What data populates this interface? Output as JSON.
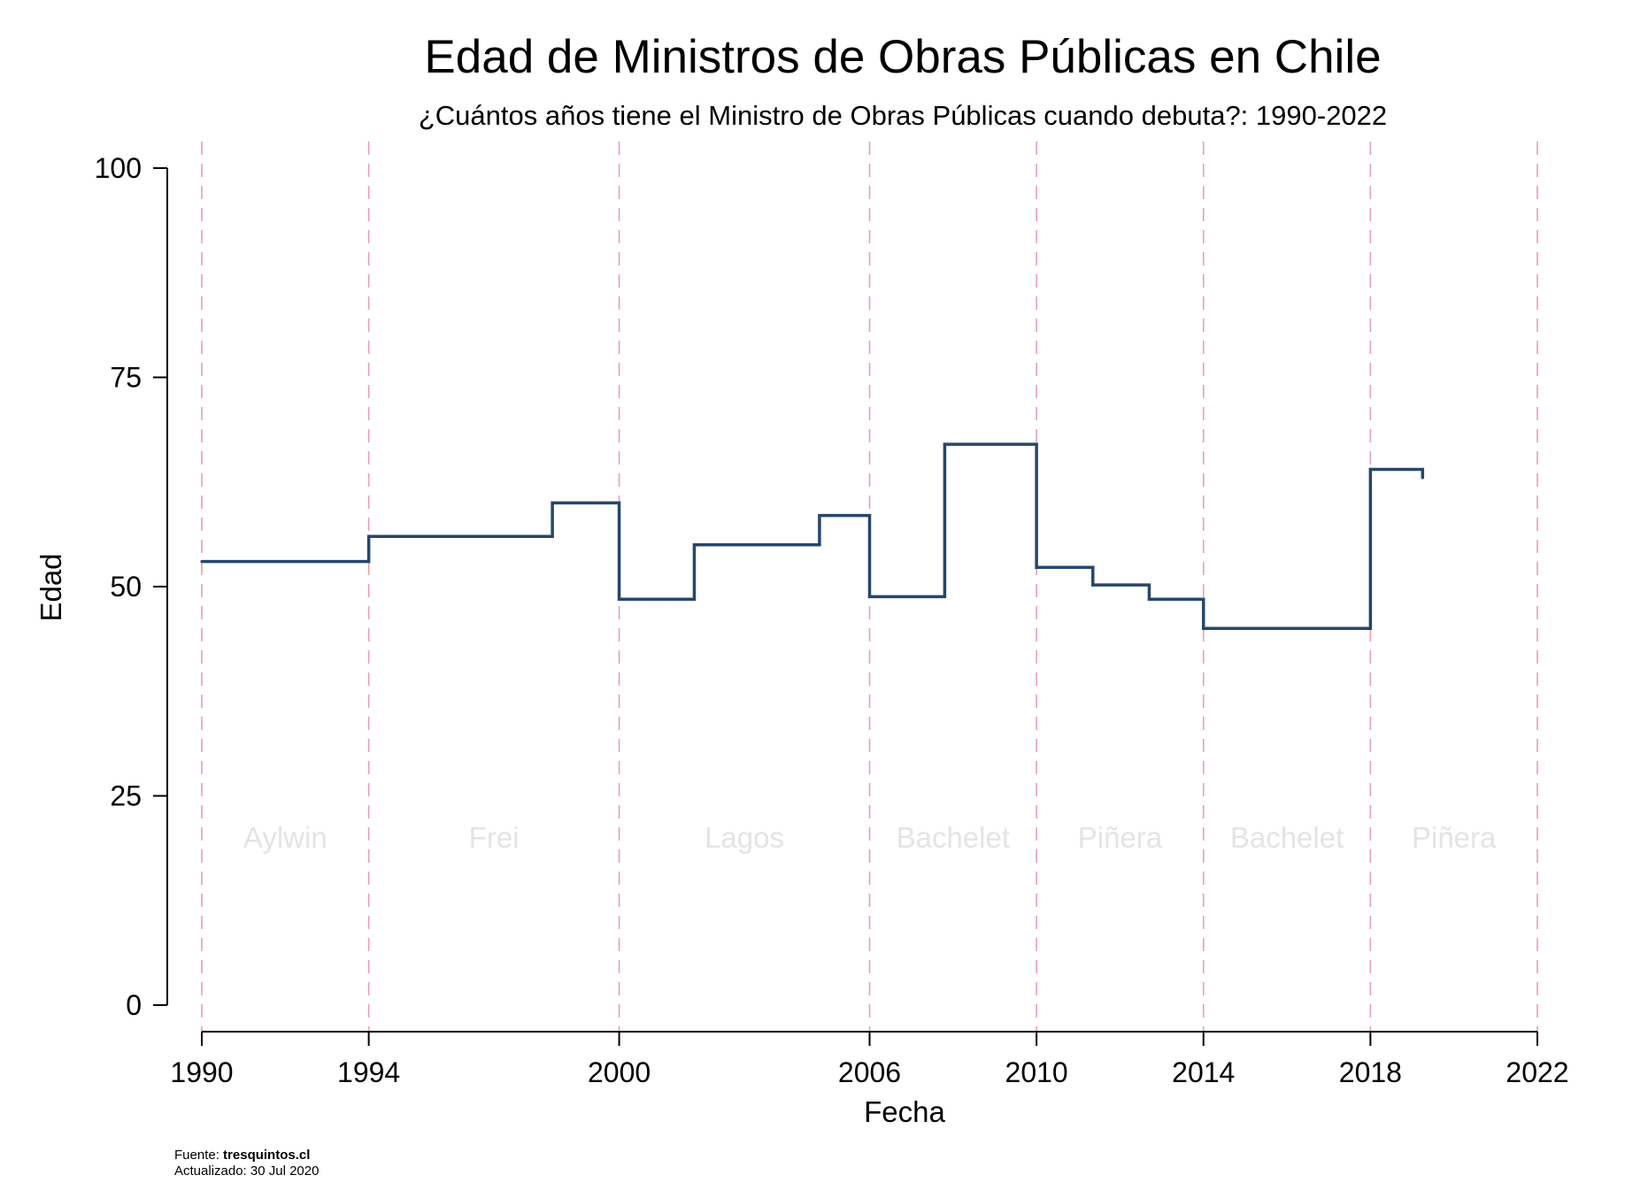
{
  "chart_data": {
    "type": "line",
    "step": true,
    "title": "Edad de Ministros de Obras Públicas en Chile",
    "subtitle": "¿Cuántos años tiene el Ministro de Obras Públicas cuando debuta?: 1990-2022",
    "xlabel": "Fecha",
    "ylabel": "Edad",
    "xlim": [
      1990,
      2022
    ],
    "ylim": [
      0,
      100
    ],
    "xticks": [
      1990,
      1994,
      2000,
      2006,
      2010,
      2014,
      2018,
      2022
    ],
    "yticks": [
      0,
      25,
      50,
      75,
      100
    ],
    "grid": false,
    "line_color": "#26466d",
    "vline_color": "#e6a0ae",
    "vlines": [
      1990,
      1994,
      2000,
      2006,
      2010,
      2014,
      2018,
      2022
    ],
    "periods": [
      {
        "label": "Aylwin",
        "start": 1990,
        "end": 1994
      },
      {
        "label": "Frei",
        "start": 1994,
        "end": 2000
      },
      {
        "label": "Lagos",
        "start": 2000,
        "end": 2006
      },
      {
        "label": "Bachelet",
        "start": 2006,
        "end": 2010
      },
      {
        "label": "Piñera",
        "start": 2010,
        "end": 2014
      },
      {
        "label": "Bachelet",
        "start": 2014,
        "end": 2018
      },
      {
        "label": "Piñera",
        "start": 2018,
        "end": 2022
      }
    ],
    "series": [
      {
        "points": [
          {
            "x": 1990.0,
            "y": 53
          },
          {
            "x": 1994.0,
            "y": 56
          },
          {
            "x": 1998.4,
            "y": 60
          },
          {
            "x": 2000.0,
            "y": 48.5
          },
          {
            "x": 2001.8,
            "y": 55
          },
          {
            "x": 2004.8,
            "y": 58.5
          },
          {
            "x": 2006.0,
            "y": 48.8
          },
          {
            "x": 2007.8,
            "y": 67
          },
          {
            "x": 2010.0,
            "y": 52.3
          },
          {
            "x": 2011.35,
            "y": 50.2
          },
          {
            "x": 2012.7,
            "y": 48.5
          },
          {
            "x": 2014.0,
            "y": 45
          },
          {
            "x": 2018.0,
            "y": 64
          },
          {
            "x": 2019.25,
            "y": 63
          }
        ]
      }
    ]
  },
  "footer": {
    "source_prefix": "Fuente: ",
    "source_name": "tresquintos.cl",
    "updated": "Actualizado: 30 Jul 2020"
  }
}
